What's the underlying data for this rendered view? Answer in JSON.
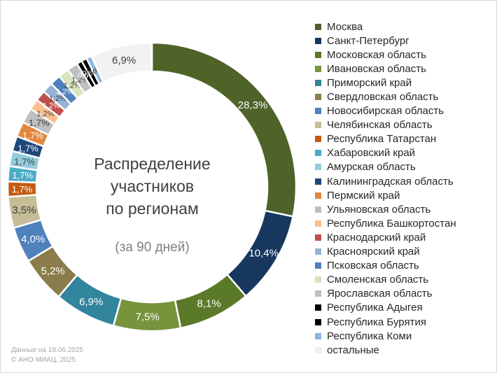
{
  "chart_data": {
    "type": "pie",
    "title": "Распределение участников по регионам",
    "title_lines": [
      "Распределение",
      "участников",
      "по регионам"
    ],
    "subtitle": "(за 90 дней)",
    "legend_position": "right",
    "slices": [
      {
        "name": "Москва",
        "value": 28.3,
        "label": "28,3%",
        "color": "#4f6228"
      },
      {
        "name": "Санкт-Петербург",
        "value": 10.4,
        "label": "10,4%",
        "color": "#17375e"
      },
      {
        "name": "Московская область",
        "value": 8.1,
        "label": "8,1%",
        "color": "#5a7a2a"
      },
      {
        "name": "Ивановская область",
        "value": 7.5,
        "label": "7,5%",
        "color": "#77933c"
      },
      {
        "name": "Приморский край",
        "value": 6.9,
        "label": "6,9%",
        "color": "#31859c"
      },
      {
        "name": "Свердловская область",
        "value": 5.2,
        "label": "5,2%",
        "color": "#8b7d4b"
      },
      {
        "name": "Новосибирская область",
        "value": 4.0,
        "label": "4,0%",
        "color": "#4f81bd"
      },
      {
        "name": "Челябинская область",
        "value": 3.5,
        "label": "3,5%",
        "color": "#c4bd97"
      },
      {
        "name": "Республика Татарстан",
        "value": 1.7,
        "label": "1,7%",
        "color": "#c55a11"
      },
      {
        "name": "Хабаровский край",
        "value": 1.7,
        "label": "1,7%",
        "color": "#4bacc6"
      },
      {
        "name": "Амурская область",
        "value": 1.7,
        "label": "1,7%",
        "color": "#93cddd"
      },
      {
        "name": "Калининградская область",
        "value": 1.7,
        "label": "1,7%",
        "color": "#1f497d"
      },
      {
        "name": "Пермский край",
        "value": 1.7,
        "label": "1,7%",
        "color": "#e2883d"
      },
      {
        "name": "Ульяновская область",
        "value": 1.7,
        "label": "1,7%",
        "color": "#bfbfbf"
      },
      {
        "name": "Республика Башкортостан",
        "value": 1.2,
        "label": "1,2%",
        "color": "#fac08f"
      },
      {
        "name": "Краснодарский край",
        "value": 1.2,
        "label": "1,2%",
        "color": "#c0504d"
      },
      {
        "name": "Красноярский край",
        "value": 1.2,
        "label": "1,2%",
        "color": "#95b3d7"
      },
      {
        "name": "Псковская область",
        "value": 1.2,
        "label": "1,2%",
        "color": "#4f81bd"
      },
      {
        "name": "Смоленская область",
        "value": 1.2,
        "label": "1,2%",
        "color": "#d7e4bc"
      },
      {
        "name": "Ярославская область",
        "value": 1.2,
        "label": "1,2%",
        "color": "#bfbfbf"
      },
      {
        "name": "Республика Адыгея",
        "value": 0.6,
        "label": "0,6%",
        "color": "#000000"
      },
      {
        "name": "Республика Бурятия",
        "value": 0.6,
        "label": "0,6%",
        "color": "#000000"
      },
      {
        "name": "Республика Коми",
        "value": 0.6,
        "label": "0,6%",
        "color": "#8db4e2"
      },
      {
        "name": "остальные",
        "value": 6.9,
        "label": "6,9%",
        "color": "#f2f2f2"
      }
    ]
  },
  "footer": {
    "date_line": "Данные на 18.06.2025",
    "copyright_line": "© АНО МИАЦ, 2025"
  }
}
